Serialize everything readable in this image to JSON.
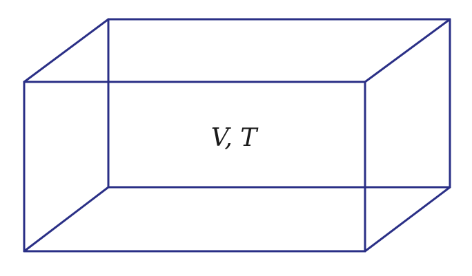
{
  "diagram": {
    "label": "V, T",
    "line_color": "#2a2f86",
    "text_color": "#1a1a1a"
  }
}
